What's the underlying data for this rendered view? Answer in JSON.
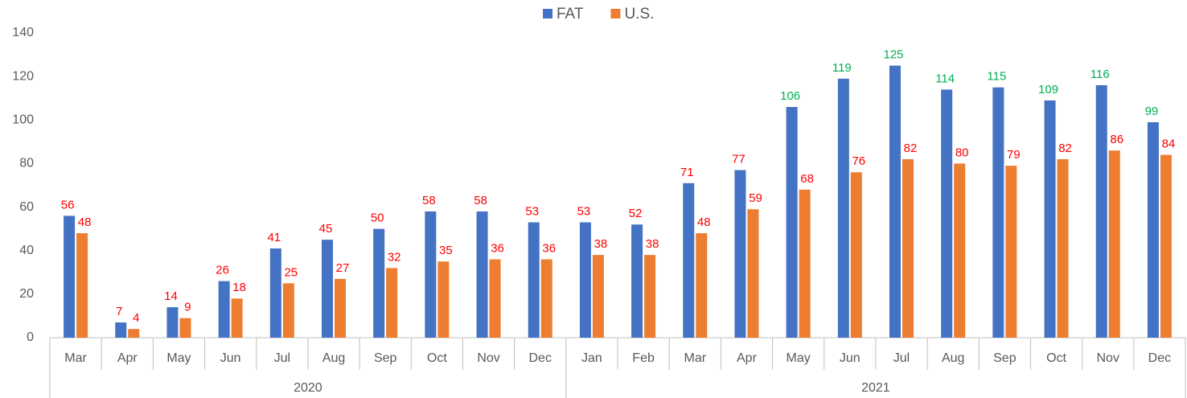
{
  "chart_data": {
    "type": "bar",
    "category_groups": [
      {
        "label": "2020",
        "categories": [
          "Mar",
          "Apr",
          "May",
          "Jun",
          "Jul",
          "Aug",
          "Sep",
          "Oct",
          "Nov",
          "Dec"
        ]
      },
      {
        "label": "2021",
        "categories": [
          "Jan",
          "Feb",
          "Mar",
          "Apr",
          "May",
          "Jun",
          "Jul",
          "Aug",
          "Sep",
          "Oct",
          "Nov",
          "Dec"
        ]
      }
    ],
    "series": [
      {
        "name": "FAT",
        "color": "#4472c4",
        "values": [
          56,
          7,
          14,
          26,
          41,
          45,
          50,
          58,
          58,
          53,
          53,
          52,
          71,
          77,
          106,
          119,
          125,
          114,
          115,
          109,
          116,
          99
        ],
        "label_colors": [
          "#ff0000",
          "#ff0000",
          "#ff0000",
          "#ff0000",
          "#ff0000",
          "#ff0000",
          "#ff0000",
          "#ff0000",
          "#ff0000",
          "#ff0000",
          "#ff0000",
          "#ff0000",
          "#ff0000",
          "#ff0000",
          "#00b050",
          "#00b050",
          "#00b050",
          "#00b050",
          "#00b050",
          "#00b050",
          "#00b050",
          "#00b050"
        ]
      },
      {
        "name": "U.S.",
        "color": "#ed7d31",
        "values": [
          48,
          4,
          9,
          18,
          25,
          27,
          32,
          35,
          36,
          36,
          38,
          38,
          48,
          59,
          68,
          76,
          82,
          80,
          79,
          82,
          86,
          84
        ],
        "label_colors": [
          "#ff0000",
          "#ff0000",
          "#ff0000",
          "#ff0000",
          "#ff0000",
          "#ff0000",
          "#ff0000",
          "#ff0000",
          "#ff0000",
          "#ff0000",
          "#ff0000",
          "#ff0000",
          "#ff0000",
          "#ff0000",
          "#ff0000",
          "#ff0000",
          "#ff0000",
          "#ff0000",
          "#ff0000",
          "#ff0000",
          "#ff0000",
          "#ff0000"
        ]
      }
    ],
    "ylim": [
      0,
      140
    ],
    "yticks": [
      0,
      20,
      40,
      60,
      80,
      100,
      120,
      140
    ],
    "grid": false,
    "legend": "top"
  }
}
